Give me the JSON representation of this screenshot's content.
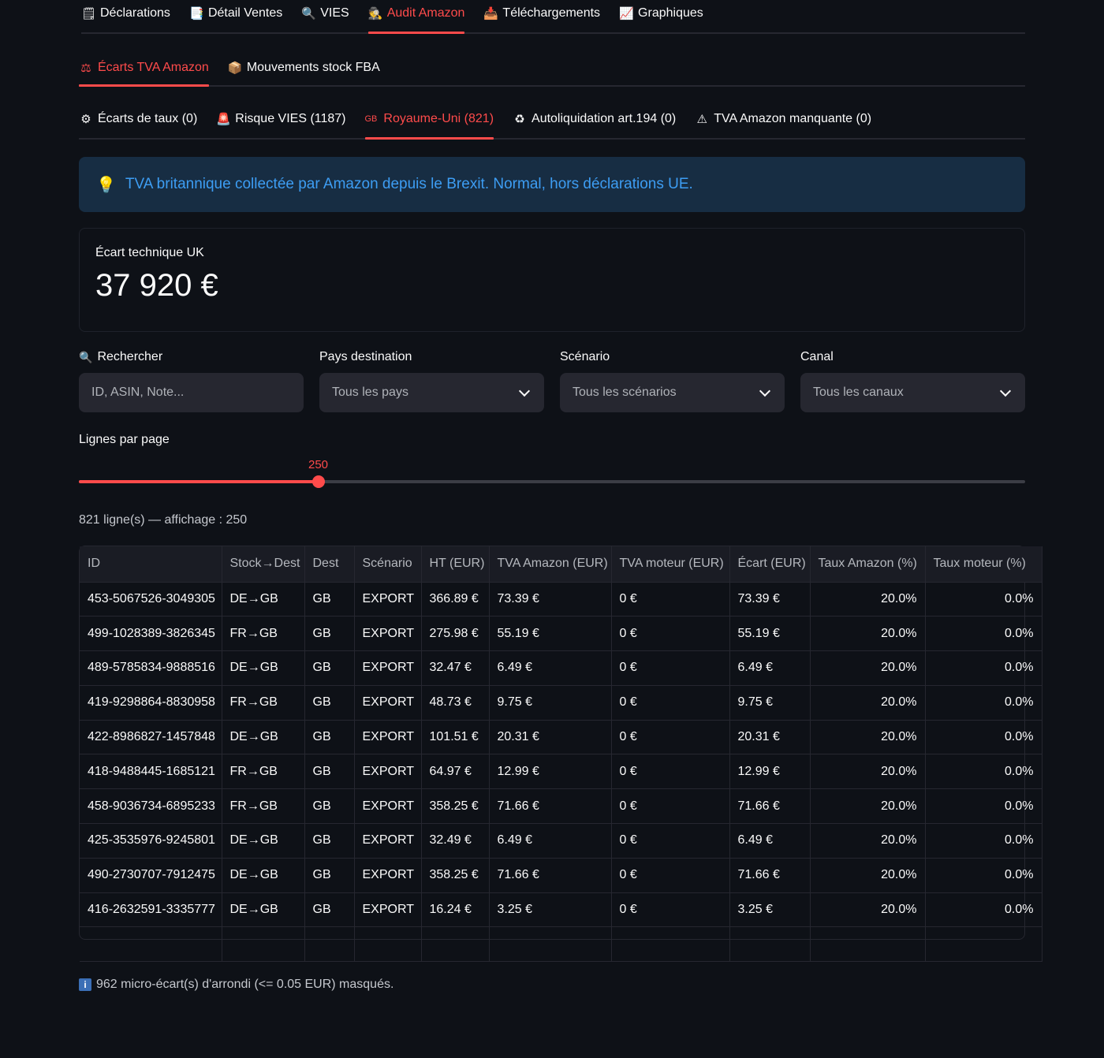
{
  "main_tabs": [
    {
      "icon": "clipboard-icon",
      "glyph": "🗒",
      "label": "Déclarations"
    },
    {
      "icon": "document-icon",
      "glyph": "📑",
      "label": "Détail Ventes"
    },
    {
      "icon": "magnifier-icon",
      "glyph": "🔍",
      "label": "VIES"
    },
    {
      "icon": "detective-icon",
      "glyph": "🕵",
      "label": "Audit Amazon",
      "active": true
    },
    {
      "icon": "inbox-icon",
      "glyph": "📥",
      "label": "Téléchargements"
    },
    {
      "icon": "chart-icon",
      "glyph": "📈",
      "label": "Graphiques"
    }
  ],
  "sub_tabs": [
    {
      "icon": "scales-icon",
      "glyph": "⚖",
      "label": "Écarts TVA Amazon",
      "active": true
    },
    {
      "icon": "package-icon",
      "glyph": "📦",
      "label": "Mouvements stock FBA"
    }
  ],
  "detail_tabs": [
    {
      "icon": "gear-icon",
      "glyph": "⚙",
      "label": "Écarts de taux (0)"
    },
    {
      "icon": "siren-icon",
      "glyph": "🚨",
      "label": "Risque VIES (1187)"
    },
    {
      "icon": "gb-flag-icon",
      "glyph": "GB",
      "label": "Royaume-Uni (821)",
      "active": true
    },
    {
      "icon": "recycle-icon",
      "glyph": "♻",
      "label": "Autoliquidation art.194 (0)"
    },
    {
      "icon": "warning-icon",
      "glyph": "⚠",
      "label": "TVA Amazon manquante (0)"
    }
  ],
  "info_banner": {
    "icon": "lightbulb-icon",
    "glyph": "💡",
    "text": "TVA britannique collectée par Amazon depuis le Brexit. Normal, hors déclarations UE."
  },
  "metric": {
    "label": "Écart technique UK",
    "value": "37 920 €"
  },
  "filters": {
    "search": {
      "label": "Rechercher",
      "icon": "search-icon",
      "glyph": "🔍",
      "placeholder": "ID, ASIN, Note..."
    },
    "country": {
      "label": "Pays destination",
      "value": "Tous les pays"
    },
    "scenario": {
      "label": "Scénario",
      "value": "Tous les scénarios"
    },
    "channel": {
      "label": "Canal",
      "value": "Tous les canaux"
    }
  },
  "rows_per_page": {
    "label": "Lignes par page",
    "value": "250",
    "fraction": 0.253
  },
  "count_text": "821 ligne(s) — affichage : 250",
  "table": {
    "columns": [
      "ID",
      "Stock→Dest",
      "Dest",
      "Scénario",
      "HT (EUR)",
      "TVA Amazon (EUR)",
      "TVA moteur (EUR)",
      "Écart (EUR)",
      "Taux Amazon (%)",
      "Taux moteur (%)"
    ],
    "rows": [
      [
        "453-5067526-3049305",
        "DE→GB",
        "GB",
        "EXPORT",
        "366.89 €",
        "73.39 €",
        "0 €",
        "73.39 €",
        "20.0%",
        "0.0%"
      ],
      [
        "499-1028389-3826345",
        "FR→GB",
        "GB",
        "EXPORT",
        "275.98 €",
        "55.19 €",
        "0 €",
        "55.19 €",
        "20.0%",
        "0.0%"
      ],
      [
        "489-5785834-9888516",
        "DE→GB",
        "GB",
        "EXPORT",
        "32.47 €",
        "6.49 €",
        "0 €",
        "6.49 €",
        "20.0%",
        "0.0%"
      ],
      [
        "419-9298864-8830958",
        "FR→GB",
        "GB",
        "EXPORT",
        "48.73 €",
        "9.75 €",
        "0 €",
        "9.75 €",
        "20.0%",
        "0.0%"
      ],
      [
        "422-8986827-1457848",
        "DE→GB",
        "GB",
        "EXPORT",
        "101.51 €",
        "20.31 €",
        "0 €",
        "20.31 €",
        "20.0%",
        "0.0%"
      ],
      [
        "418-9488445-1685121",
        "FR→GB",
        "GB",
        "EXPORT",
        "64.97 €",
        "12.99 €",
        "0 €",
        "12.99 €",
        "20.0%",
        "0.0%"
      ],
      [
        "458-9036734-6895233",
        "FR→GB",
        "GB",
        "EXPORT",
        "358.25 €",
        "71.66 €",
        "0 €",
        "71.66 €",
        "20.0%",
        "0.0%"
      ],
      [
        "425-3535976-9245801",
        "DE→GB",
        "GB",
        "EXPORT",
        "32.49 €",
        "6.49 €",
        "0 €",
        "6.49 €",
        "20.0%",
        "0.0%"
      ],
      [
        "490-2730707-7912475",
        "DE→GB",
        "GB",
        "EXPORT",
        "358.25 €",
        "71.66 €",
        "0 €",
        "71.66 €",
        "20.0%",
        "0.0%"
      ],
      [
        "416-2632591-3335777",
        "DE→GB",
        "GB",
        "EXPORT",
        "16.24 €",
        "3.25 €",
        "0 €",
        "3.25 €",
        "20.0%",
        "0.0%"
      ]
    ]
  },
  "footnote": {
    "icon": "info-icon",
    "glyph": "i",
    "text": "962 micro-écart(s) d'arrondi (<= 0.05 EUR) masqués."
  },
  "colors": {
    "accent": "#ff4b4b",
    "info_text": "#3d9df3",
    "info_bg": "#172d43",
    "background": "#0e1117"
  }
}
